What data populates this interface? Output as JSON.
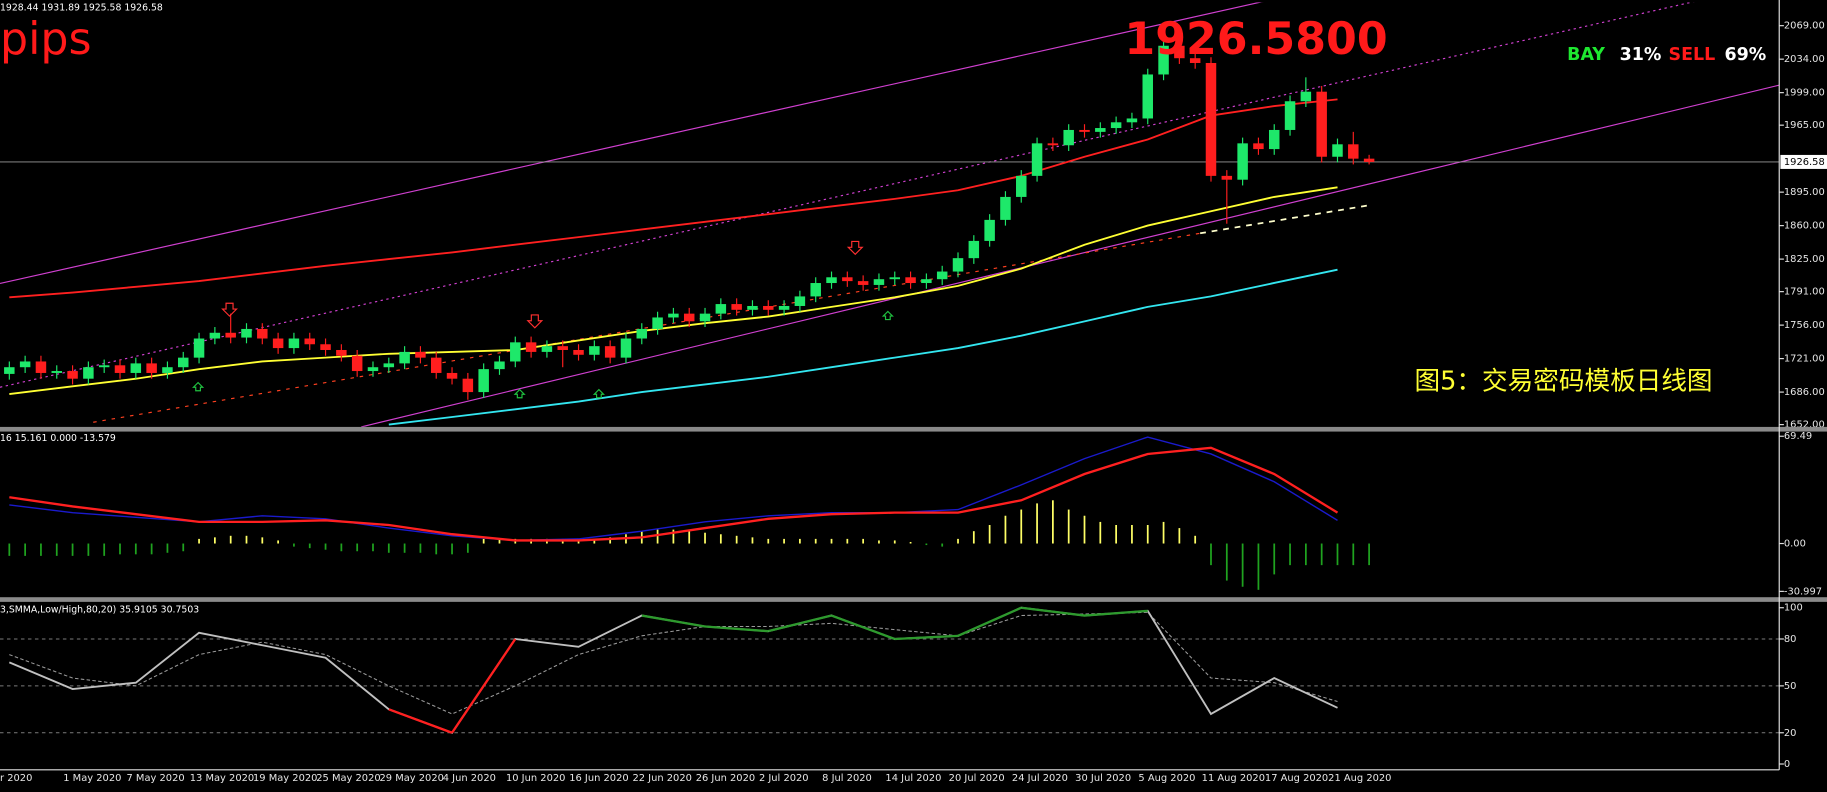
{
  "chart_data": [
    {
      "type": "candlestick",
      "header": "1928.44 1931.89 1925.58 1926.58",
      "pips": "pips",
      "price_label": "1926.5800",
      "bay": "BAY",
      "bay_pct": "31%",
      "sell": "SELL",
      "sell_pct": "69%",
      "caption": "图5：交易密码模板日线图",
      "categories": [
        "r 2020",
        null,
        null,
        null,
        "1 May 2020",
        null,
        null,
        null,
        "7 May 2020",
        null,
        null,
        null,
        "13 May 2020",
        null,
        null,
        null,
        "19 May 2020",
        null,
        null,
        null,
        "25 May 2020",
        null,
        null,
        null,
        "29 May 2020",
        null,
        null,
        null,
        "4 Jun 2020",
        null,
        null,
        null,
        "10 Jun 2020",
        null,
        null,
        null,
        "16 Jun 2020",
        null,
        null,
        null,
        "22 Jun 2020",
        null,
        null,
        null,
        "26 Jun 2020",
        null,
        null,
        null,
        "2 Jul 2020",
        null,
        null,
        null,
        "8 Jul 2020",
        null,
        null,
        null,
        "14 Jul 2020",
        null,
        null,
        null,
        "20 Jul 2020",
        null,
        null,
        null,
        "24 Jul 2020",
        null,
        null,
        null,
        "30 Jul 2020",
        null,
        null,
        null,
        "5 Aug 2020",
        null,
        null,
        null,
        "11 Aug 2020",
        null,
        null,
        null,
        "17 Aug 2020",
        null,
        null,
        null,
        "21 Aug 2020",
        null,
        null
      ],
      "open": [
        1705,
        1712,
        1718,
        1706,
        1708,
        1700,
        1712,
        1714,
        1706,
        1716,
        1706,
        1712,
        1722,
        1742,
        1748,
        1743,
        1752,
        1742,
        1732,
        1742,
        1736,
        1730,
        1724,
        1708,
        1712,
        1716,
        1728,
        1722,
        1706,
        1700,
        1686,
        1710,
        1718,
        1738,
        1728,
        1734,
        1730,
        1725,
        1734,
        1722,
        1742,
        1752,
        1764,
        1768,
        1760,
        1768,
        1778,
        1772,
        1776,
        1772,
        1776,
        1786,
        1800,
        1806,
        1802,
        1798,
        1804,
        1806,
        1800,
        1804,
        1812,
        1826,
        1844,
        1866,
        1890,
        1912,
        1946,
        1944,
        1960,
        1958,
        1962,
        1968,
        1972,
        2018,
        2048,
        2035,
        2030,
        1912,
        1908,
        1946,
        1940,
        1960,
        1990,
        2000,
        1932,
        1945,
        1930
      ],
      "high": [
        1718,
        1724,
        1724,
        1714,
        1714,
        1718,
        1720,
        1720,
        1722,
        1722,
        1718,
        1728,
        1748,
        1754,
        1768,
        1758,
        1758,
        1748,
        1748,
        1748,
        1742,
        1736,
        1730,
        1718,
        1722,
        1734,
        1734,
        1728,
        1712,
        1706,
        1716,
        1724,
        1744,
        1744,
        1740,
        1740,
        1736,
        1740,
        1740,
        1748,
        1758,
        1770,
        1774,
        1774,
        1774,
        1784,
        1784,
        1782,
        1782,
        1782,
        1792,
        1806,
        1812,
        1812,
        1808,
        1810,
        1812,
        1812,
        1810,
        1818,
        1832,
        1850,
        1872,
        1896,
        1918,
        1952,
        1952,
        1966,
        1966,
        1968,
        1974,
        1978,
        2024,
        2054,
        2066,
        2041,
        2036,
        1918,
        1952,
        1952,
        1966,
        1996,
        2015,
        2006,
        1951,
        1958,
        1934
      ],
      "low": [
        1699,
        1706,
        1700,
        1700,
        1694,
        1694,
        1706,
        1700,
        1700,
        1700,
        1700,
        1706,
        1716,
        1736,
        1737,
        1737,
        1736,
        1726,
        1726,
        1730,
        1724,
        1718,
        1702,
        1702,
        1706,
        1710,
        1716,
        1700,
        1694,
        1678,
        1680,
        1704,
        1712,
        1722,
        1722,
        1712,
        1719,
        1719,
        1716,
        1716,
        1736,
        1746,
        1758,
        1754,
        1754,
        1762,
        1766,
        1766,
        1766,
        1766,
        1770,
        1780,
        1794,
        1796,
        1792,
        1792,
        1798,
        1794,
        1794,
        1798,
        1806,
        1820,
        1838,
        1860,
        1884,
        1906,
        1938,
        1938,
        1952,
        1952,
        1956,
        1962,
        1966,
        2012,
        2029,
        2024,
        1906,
        1862,
        1902,
        1934,
        1934,
        1954,
        1984,
        1926,
        1926,
        1924,
        1924
      ],
      "close": [
        1712,
        1718,
        1706,
        1708,
        1700,
        1712,
        1714,
        1706,
        1716,
        1706,
        1712,
        1722,
        1742,
        1748,
        1743,
        1752,
        1742,
        1732,
        1742,
        1736,
        1730,
        1724,
        1708,
        1712,
        1716,
        1728,
        1722,
        1706,
        1700,
        1686,
        1710,
        1718,
        1738,
        1728,
        1734,
        1730,
        1725,
        1734,
        1722,
        1742,
        1752,
        1764,
        1768,
        1760,
        1768,
        1778,
        1772,
        1776,
        1772,
        1776,
        1786,
        1800,
        1806,
        1802,
        1798,
        1804,
        1806,
        1800,
        1804,
        1812,
        1826,
        1844,
        1866,
        1890,
        1912,
        1946,
        1944,
        1960,
        1958,
        1962,
        1968,
        1972,
        2018,
        2048,
        2035,
        2030,
        1912,
        1908,
        1946,
        1940,
        1960,
        1990,
        2000,
        1932,
        1945,
        1930,
        1926.58
      ],
      "up_color": "#1ee86a",
      "down_color": "#ff1e1e",
      "lines": [
        {
          "color": "#ff2020",
          "values": [
            1785,
            1790,
            1796,
            1802,
            1810,
            1818,
            1825,
            1832,
            1840,
            1848,
            1856,
            1864,
            1872,
            1880,
            1888,
            1897,
            1912,
            1932,
            1950,
            1975,
            1985,
            1992
          ]
        },
        {
          "color": "#ffff33",
          "values": [
            1684,
            1692,
            1700,
            1710,
            1718,
            1722,
            1726,
            1728,
            1730,
            1740,
            1750,
            1758,
            1765,
            1775,
            1785,
            1797,
            1815,
            1840,
            1860,
            1875,
            1890,
            1900
          ]
        },
        {
          "color": "#33e6f0",
          "values": [
            null,
            null,
            null,
            null,
            null,
            null,
            1652,
            1660,
            1668,
            1676,
            1686,
            1694,
            1702,
            1712,
            1722,
            1732,
            1745,
            1760,
            1775,
            1786,
            1800,
            1814
          ]
        }
      ],
      "current": {
        "value": 1926.58,
        "label": "1926.58"
      },
      "ylim": [
        1649.6,
        2093.4
      ],
      "yticks": [
        {
          "value": 2069,
          "label": "2069.00"
        },
        {
          "value": 2034,
          "label": "2034.00"
        },
        {
          "value": 1999,
          "label": "1999.00"
        },
        {
          "value": 1965,
          "label": "1965.00"
        },
        {
          "value": 1895,
          "label": "1895.00"
        },
        {
          "value": 1860,
          "label": "1860.00"
        },
        {
          "value": 1825,
          "label": "1825.00"
        },
        {
          "value": 1791,
          "label": "1791.00"
        },
        {
          "value": 1756,
          "label": "1756.00"
        },
        {
          "value": 1721,
          "label": "1721.00"
        },
        {
          "value": 1686,
          "label": "1686.00"
        },
        {
          "value": 1652,
          "label": "1652.00"
        }
      ]
    },
    {
      "type": "macd",
      "header": "16 15.161 0.000 -13.579",
      "ylim": [
        -34.02,
        71.76
      ],
      "yticks": [
        69.49,
        {
          "value": 0,
          "label": "0.00"
        },
        -30.997
      ],
      "histogram": {
        "pos_color": "#ffff66",
        "neg_color": "#1fa31f",
        "values": [
          -8,
          -8,
          -8,
          -8,
          -8,
          -8,
          -8,
          -7,
          -7,
          -7,
          -6,
          -5,
          3,
          4,
          5,
          5,
          4,
          2,
          -2,
          -3,
          -4,
          -5,
          -5,
          -5,
          -6,
          -6,
          -6,
          -7,
          -7,
          -6,
          3,
          3,
          3,
          3,
          3,
          3,
          2,
          3,
          4,
          6,
          8,
          9,
          9,
          8,
          7,
          6,
          5,
          4,
          3,
          3,
          3,
          3,
          3,
          3,
          3,
          2,
          2,
          1,
          -1,
          -2,
          3,
          8,
          12,
          18,
          22,
          26,
          28,
          22,
          18,
          14,
          12,
          12,
          12,
          14,
          10,
          5,
          -14,
          -24,
          -28,
          -30,
          -20,
          -14,
          -14,
          -14,
          -14,
          -14,
          -14
        ]
      },
      "series": [
        {
          "color": "#1a1acc",
          "values": [
            25,
            20,
            17,
            14,
            18,
            16,
            10,
            5,
            2,
            3,
            8,
            14,
            18,
            20,
            20,
            22,
            38,
            55,
            69,
            58,
            40,
            15
          ]
        },
        {
          "color": "#ff2020",
          "values": [
            30,
            24,
            19,
            14,
            14,
            15,
            12,
            6,
            2,
            2,
            4,
            10,
            16,
            19,
            20,
            20,
            28,
            45,
            58,
            62,
            45,
            20
          ]
        }
      ]
    },
    {
      "type": "stochastic",
      "header": "3,SMMA,Low/High,80,20) 35.9105 30.7503",
      "ylim": [
        -3.73,
        103
      ],
      "yticks": [
        100,
        80,
        50,
        20,
        0
      ],
      "levels": [
        80,
        50,
        20
      ],
      "series": [
        {
          "color": "#c0c0c0",
          "high_color": "#2e9a2e",
          "low_color": "#ff2020",
          "values": [
            65,
            48,
            52,
            84,
            76,
            68,
            35,
            20,
            80,
            75,
            95,
            88,
            85,
            95,
            80,
            82,
            100,
            95,
            98,
            32,
            55,
            36
          ]
        },
        {
          "color": "#9a9a9a",
          "dashed": true,
          "values": [
            70,
            55,
            50,
            70,
            78,
            70,
            50,
            32,
            50,
            70,
            82,
            88,
            88,
            90,
            86,
            82,
            95,
            96,
            97,
            55,
            52,
            40
          ]
        }
      ]
    }
  ]
}
